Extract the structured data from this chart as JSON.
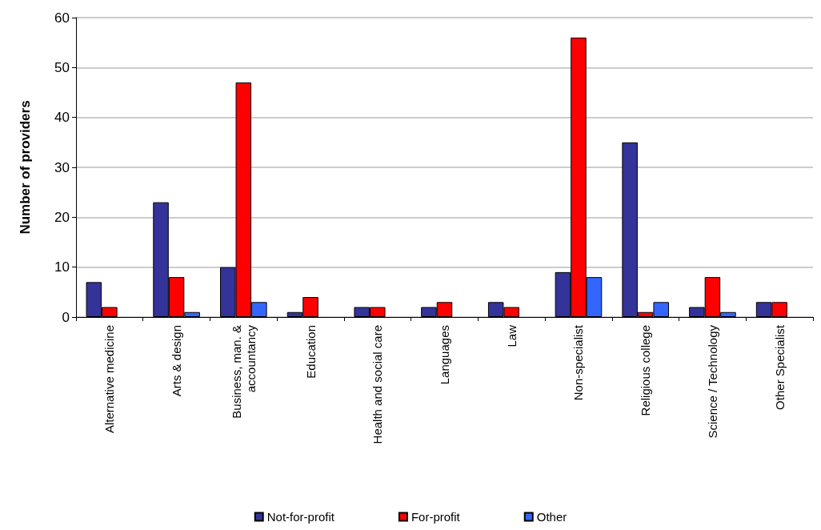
{
  "chart_data": {
    "type": "bar",
    "ylabel": "Number of providers",
    "categories": [
      "Alternative medicine",
      "Arts & design",
      "Business, man. &\naccountancy",
      "Education",
      "Health and social care",
      "Languages",
      "Law",
      "Non-specialist",
      "Religious college",
      "Science / Technology",
      "Other Specialist"
    ],
    "series": [
      {
        "name": "Not-for-profit",
        "color": "#333399",
        "values": [
          7,
          23,
          10,
          1,
          2,
          2,
          3,
          9,
          35,
          2,
          3
        ]
      },
      {
        "name": "For-profit",
        "color": "#ff0000",
        "values": [
          2,
          8,
          47,
          4,
          2,
          3,
          2,
          56,
          1,
          8,
          3
        ]
      },
      {
        "name": "Other",
        "color": "#3366ff",
        "values": [
          null,
          1,
          3,
          null,
          null,
          null,
          null,
          8,
          3,
          1,
          null
        ]
      }
    ],
    "ylim": [
      0,
      60
    ],
    "yticks": [
      0,
      10,
      20,
      30,
      40,
      50,
      60
    ],
    "grid": "y",
    "legend": "bottom"
  }
}
